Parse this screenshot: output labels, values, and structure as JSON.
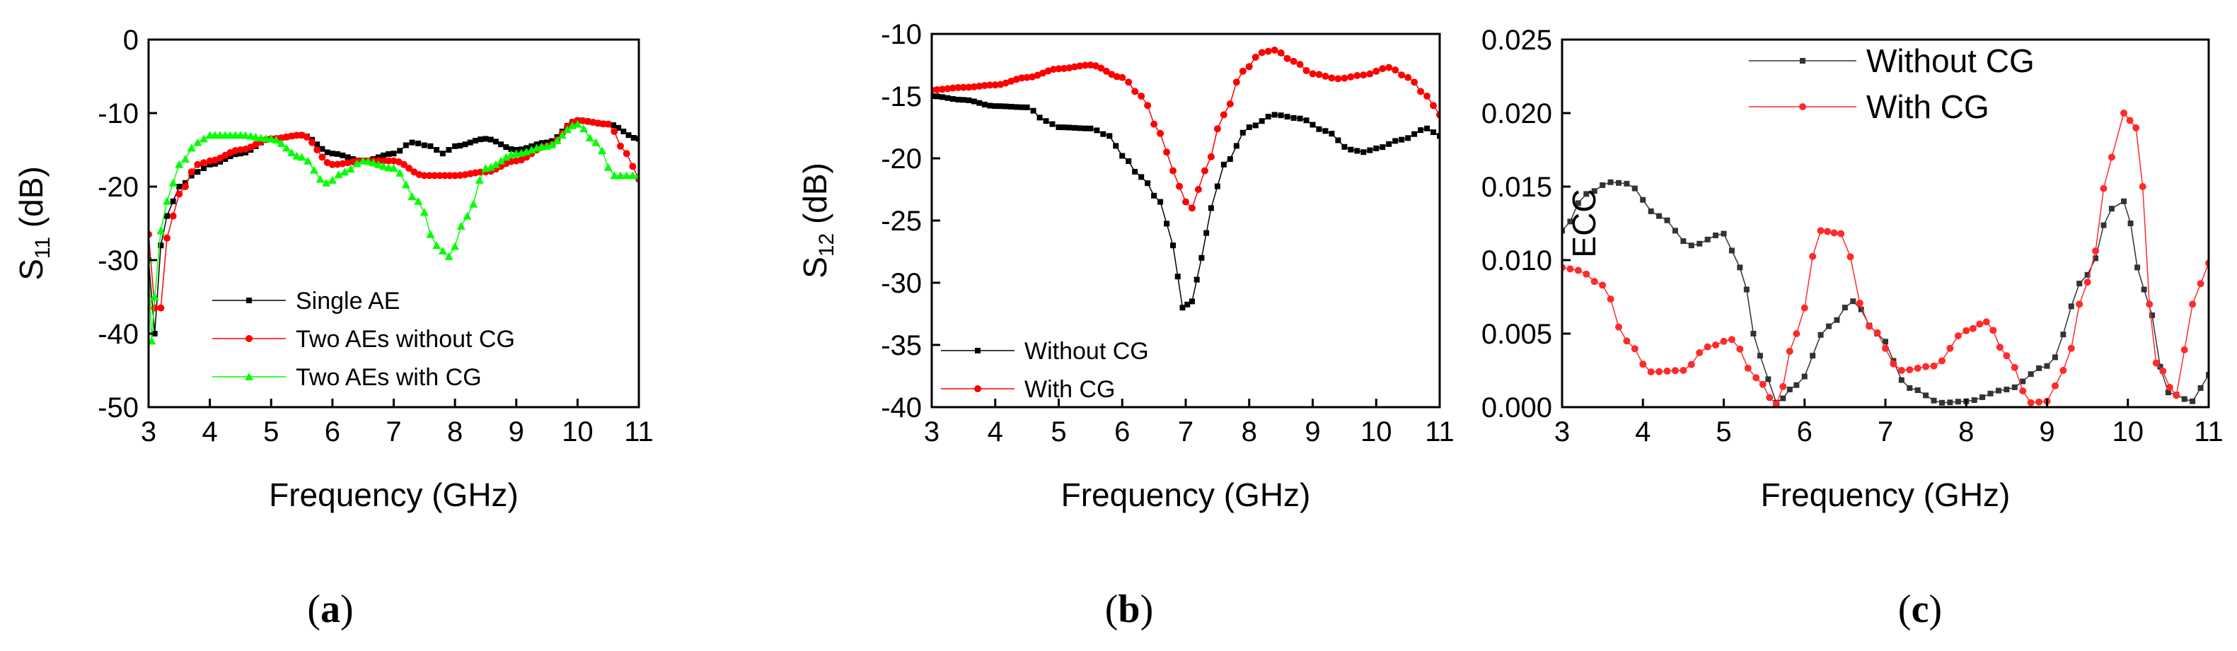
{
  "chart_data": [
    {
      "id": "a",
      "type": "line",
      "caption_letter": "a",
      "title": "",
      "xlabel": "Frequency (GHz)",
      "ylabel_main": "S",
      "ylabel_sub": "11",
      "ylabel_tail": " (dB)",
      "xlim": [
        3,
        11
      ],
      "ylim": [
        -50,
        0
      ],
      "xticks": [
        3,
        4,
        5,
        6,
        7,
        8,
        9,
        10,
        11
      ],
      "yticks": [
        0,
        -10,
        -20,
        -30,
        -40,
        -50
      ],
      "legend": "bottom-center",
      "series": [
        {
          "name": "Single AE",
          "color": "#000000",
          "marker": "square",
          "x": [
            3.0,
            3.1,
            3.2,
            3.3,
            3.5,
            3.8,
            4.0,
            4.5,
            5.0,
            5.5,
            6.0,
            6.5,
            7.0,
            7.3,
            7.6,
            7.8,
            8.0,
            8.5,
            9.0,
            9.5,
            10.0,
            10.5,
            11.0
          ],
          "y": [
            -30,
            -40,
            -28,
            -24,
            -20,
            -18,
            -17,
            -15.5,
            -13.5,
            -13,
            -15.5,
            -16.5,
            -15.5,
            -14,
            -14.5,
            -15.5,
            -14.5,
            -13.5,
            -15,
            -14,
            -11,
            -11.5,
            -13.5
          ]
        },
        {
          "name": "Two AEs without CG",
          "color": "#ff0000",
          "marker": "circle",
          "x": [
            3.0,
            3.1,
            3.2,
            3.3,
            3.5,
            3.8,
            4.0,
            4.5,
            5.0,
            5.5,
            6.0,
            6.5,
            7.0,
            7.5,
            8.0,
            8.5,
            9.0,
            9.5,
            10.0,
            10.5,
            10.8,
            11.0
          ],
          "y": [
            -26.5,
            -36.5,
            -36.5,
            -27,
            -21,
            -17,
            -16.5,
            -15,
            -13.5,
            -13,
            -17,
            -16.5,
            -16.5,
            -18.5,
            -18.5,
            -18,
            -16.5,
            -14.5,
            -11,
            -11.5,
            -15.5,
            -19
          ]
        },
        {
          "name": "Two AEs with CG",
          "color": "#00ff00",
          "marker": "triangle",
          "x": [
            3.0,
            3.05,
            3.1,
            3.2,
            3.3,
            3.5,
            3.8,
            4.0,
            4.5,
            5.0,
            5.5,
            5.9,
            6.2,
            6.5,
            7.0,
            7.4,
            7.7,
            7.9,
            8.2,
            8.5,
            9.0,
            9.5,
            10.0,
            10.3,
            10.6,
            11.0
          ],
          "y": [
            -30,
            -41,
            -35,
            -26,
            -22,
            -17,
            -14,
            -13,
            -13,
            -13.5,
            -16,
            -19.5,
            -18,
            -16.5,
            -17.5,
            -22,
            -28,
            -29.5,
            -24,
            -17.5,
            -15.5,
            -14.5,
            -11.5,
            -14,
            -18.5,
            -18.5
          ]
        }
      ]
    },
    {
      "id": "b",
      "type": "line",
      "caption_letter": "b",
      "title": "",
      "xlabel": "Frequency (GHz)",
      "ylabel_main": "S",
      "ylabel_sub": "12",
      "ylabel_tail": " (dB)",
      "xlim": [
        3,
        11
      ],
      "ylim": [
        -40,
        -10
      ],
      "xticks": [
        3,
        4,
        5,
        6,
        7,
        8,
        9,
        10,
        11
      ],
      "yticks": [
        -10,
        -15,
        -20,
        -25,
        -30,
        -35,
        -40
      ],
      "legend": "bottom-left",
      "series": [
        {
          "name": "Without CG",
          "color": "#000000",
          "marker": "square",
          "x": [
            3.0,
            3.5,
            4.0,
            4.5,
            4.8,
            5.0,
            5.5,
            5.8,
            6.0,
            6.3,
            6.6,
            6.8,
            6.95,
            7.1,
            7.25,
            7.4,
            7.6,
            8.0,
            8.4,
            8.8,
            9.2,
            9.6,
            9.8,
            10.0,
            10.4,
            10.8,
            11.0
          ],
          "y": [
            -15,
            -15.3,
            -15.8,
            -15.9,
            -17,
            -17.5,
            -17.6,
            -18.2,
            -19.8,
            -21.5,
            -23.5,
            -27,
            -32,
            -31.5,
            -28,
            -24,
            -20.5,
            -17.5,
            -16.5,
            -16.8,
            -17.8,
            -19.3,
            -19.5,
            -19.2,
            -18.5,
            -17.6,
            -18.2
          ]
        },
        {
          "name": "With CG",
          "color": "#ff0000",
          "marker": "circle",
          "x": [
            3.0,
            3.5,
            4.0,
            4.5,
            5.0,
            5.5,
            6.0,
            6.3,
            6.6,
            6.8,
            7.0,
            7.1,
            7.3,
            7.6,
            7.9,
            8.2,
            8.4,
            8.7,
            9.0,
            9.4,
            9.8,
            10.2,
            10.5,
            10.8,
            11.0
          ],
          "y": [
            -14.5,
            -14.3,
            -14.1,
            -13.5,
            -12.8,
            -12.5,
            -13.5,
            -15,
            -18,
            -21,
            -23.5,
            -24,
            -21,
            -16.5,
            -13,
            -11.5,
            -11.3,
            -12.2,
            -13.2,
            -13.6,
            -13.3,
            -12.7,
            -13.5,
            -15,
            -16.5
          ]
        }
      ]
    },
    {
      "id": "c",
      "type": "line",
      "caption_letter": "c",
      "title": "",
      "xlabel": "Frequency (GHz)",
      "ylabel_main": "ECC",
      "ylabel_sub": "",
      "ylabel_tail": "",
      "xlim": [
        3,
        11
      ],
      "ylim": [
        0,
        0.025
      ],
      "xticks": [
        3,
        4,
        5,
        6,
        7,
        8,
        9,
        10,
        11
      ],
      "yticks": [
        0.0,
        0.005,
        0.01,
        0.015,
        0.02,
        0.025
      ],
      "ytick_labels": [
        "0.000",
        "0.005",
        "0.010",
        "0.015",
        "0.020",
        "0.025"
      ],
      "legend": "top-left",
      "series": [
        {
          "name": "Without CG",
          "color": "#333333",
          "marker": "square",
          "x": [
            3.0,
            3.3,
            3.6,
            3.8,
            4.2,
            4.6,
            5.0,
            5.2,
            5.45,
            5.65,
            5.9,
            6.3,
            6.6,
            6.9,
            7.3,
            7.7,
            8.0,
            8.5,
            9.0,
            9.5,
            9.8,
            9.95,
            10.2,
            10.5,
            10.8,
            11.0
          ],
          "y": [
            0.012,
            0.0145,
            0.0153,
            0.0152,
            0.013,
            0.011,
            0.0118,
            0.0095,
            0.0035,
            0.0003,
            0.0015,
            0.0055,
            0.0072,
            0.005,
            0.0013,
            0.0003,
            0.0004,
            0.0012,
            0.0028,
            0.009,
            0.0135,
            0.014,
            0.008,
            0.001,
            0.0004,
            0.0022
          ]
        },
        {
          "name": "With CG",
          "color": "#ff2a2a",
          "marker": "circle",
          "x": [
            3.0,
            3.2,
            3.5,
            3.8,
            4.1,
            4.5,
            4.8,
            5.1,
            5.4,
            5.65,
            5.9,
            6.2,
            6.45,
            6.8,
            7.2,
            7.6,
            8.0,
            8.25,
            8.5,
            8.8,
            9.0,
            9.2,
            9.5,
            9.8,
            9.95,
            10.1,
            10.35,
            10.6,
            10.8,
            11.0
          ],
          "y": [
            0.0095,
            0.0093,
            0.0083,
            0.0045,
            0.0024,
            0.0025,
            0.0041,
            0.0046,
            0.002,
            0.0002,
            0.005,
            0.012,
            0.0118,
            0.0055,
            0.0025,
            0.0028,
            0.0052,
            0.0058,
            0.0035,
            0.0003,
            0.0004,
            0.0025,
            0.0085,
            0.017,
            0.02,
            0.019,
            0.003,
            0.0008,
            0.007,
            0.0098
          ]
        }
      ]
    }
  ]
}
